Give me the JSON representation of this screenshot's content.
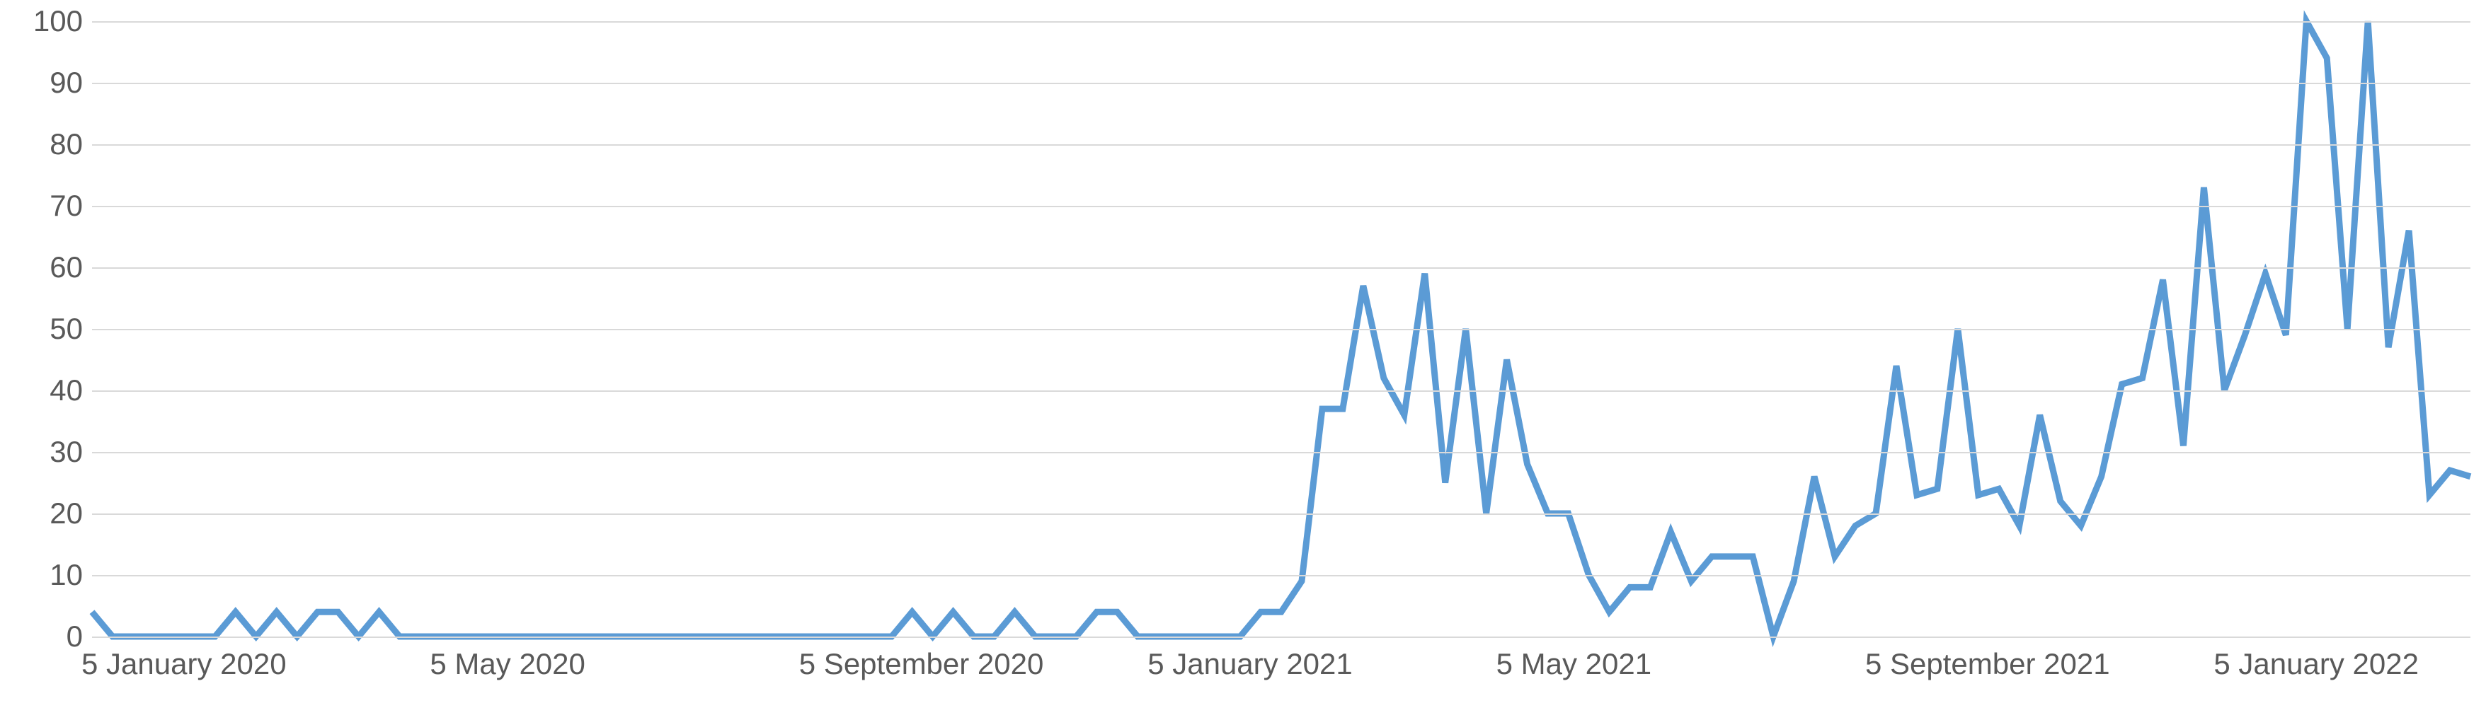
{
  "chart": {
    "type": "line",
    "background_color": "#ffffff",
    "grid_color": "#d9d9d9",
    "axis_label_color": "#595959",
    "axis_label_fontsize": 42,
    "line_color": "#5b9bd5",
    "line_width": 9,
    "ylim": [
      0,
      100
    ],
    "ytick_step": 10,
    "y_ticks": [
      0,
      10,
      20,
      30,
      40,
      50,
      60,
      70,
      80,
      90,
      100
    ],
    "x_tick_labels": [
      {
        "label": "5 January 2020",
        "index": 0
      },
      {
        "label": "5 May 2020",
        "index": 17
      },
      {
        "label": "5 September 2020",
        "index": 35
      },
      {
        "label": "5 January 2021",
        "index": 52
      },
      {
        "label": "5 May 2021",
        "index": 69
      },
      {
        "label": "5 September 2021",
        "index": 87
      },
      {
        "label": "5 January 2022",
        "index": 104
      }
    ],
    "n_points": 117,
    "values": [
      4,
      0,
      0,
      0,
      0,
      0,
      0,
      4,
      0,
      4,
      0,
      4,
      4,
      0,
      4,
      0,
      0,
      0,
      0,
      0,
      0,
      0,
      0,
      0,
      0,
      0,
      0,
      0,
      0,
      0,
      0,
      0,
      0,
      0,
      0,
      0,
      0,
      0,
      0,
      0,
      4,
      0,
      4,
      0,
      0,
      4,
      0,
      0,
      0,
      4,
      4,
      0,
      0,
      0,
      0,
      0,
      0,
      4,
      4,
      9,
      37,
      37,
      57,
      42,
      36,
      59,
      25,
      50,
      20,
      45,
      28,
      20,
      20,
      10,
      4,
      8,
      8,
      17,
      9,
      13,
      13,
      13,
      0,
      9,
      26,
      13,
      18,
      20,
      44,
      23,
      24,
      50,
      23,
      24,
      18,
      36,
      22,
      18,
      26,
      41,
      42,
      58,
      31,
      73,
      40,
      49,
      59,
      49,
      100,
      94,
      50,
      100,
      47,
      66,
      23,
      27,
      26
    ]
  }
}
